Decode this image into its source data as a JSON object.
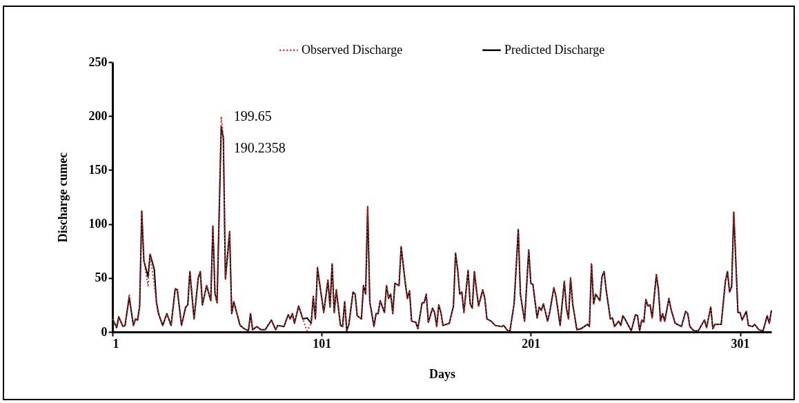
{
  "chart_data": {
    "type": "line",
    "xlabel": "Days",
    "ylabel": "Discharge cumec",
    "xlim": [
      1,
      316
    ],
    "xticks": [
      1,
      101,
      201,
      301
    ],
    "ylim": [
      0,
      250
    ],
    "yticks": [
      0,
      50,
      100,
      150,
      200,
      250
    ],
    "grid": false,
    "legend": "top",
    "marker": "none",
    "x": [
      1,
      3,
      4,
      6,
      7,
      9,
      11,
      12,
      13,
      14,
      15,
      16,
      18,
      19,
      21,
      22,
      23,
      25,
      27,
      29,
      31,
      32,
      34,
      36,
      37,
      38,
      40,
      42,
      43,
      44,
      46,
      48,
      49,
      50,
      51,
      53,
      54,
      55,
      57,
      58,
      59,
      62,
      64,
      66,
      67,
      68,
      70,
      72,
      74,
      77,
      79,
      80,
      83,
      85,
      86,
      87,
      88,
      90,
      92,
      94,
      96,
      97,
      98,
      99,
      102,
      104,
      105,
      106,
      107,
      108,
      110,
      111,
      112,
      113,
      114,
      116,
      117,
      118,
      120,
      121,
      122,
      123,
      124,
      126,
      127,
      128,
      129,
      131,
      132,
      133,
      134,
      135,
      136,
      138,
      139,
      141,
      142,
      143,
      144,
      146,
      147,
      149,
      150,
      151,
      152,
      154,
      155,
      156,
      157,
      158,
      159,
      162,
      164,
      165,
      166,
      167,
      168,
      169,
      171,
      172,
      173,
      174,
      175,
      176,
      178,
      179,
      180,
      182,
      184,
      187,
      188,
      190,
      191,
      193,
      195,
      196,
      198,
      200,
      201,
      202,
      204,
      205,
      206,
      207,
      209,
      210,
      212,
      213,
      215,
      217,
      218,
      219,
      220,
      221,
      223,
      225,
      228,
      229,
      230,
      231,
      232,
      234,
      235,
      236,
      237,
      239,
      240,
      241,
      243,
      244,
      245,
      246,
      249,
      251,
      252,
      253,
      254,
      255,
      256,
      257,
      258,
      259,
      261,
      262,
      263,
      264,
      265,
      267,
      268,
      270,
      273,
      275,
      276,
      277,
      279,
      281,
      284,
      285,
      287,
      288,
      289,
      291,
      292,
      294,
      295,
      296,
      297,
      298,
      300,
      301,
      302,
      304,
      305,
      307,
      308,
      310,
      312,
      314,
      315,
      316
    ],
    "series": [
      {
        "name": "Observed Discharge",
        "color": "#d62728",
        "line_style": "dotted",
        "values": [
          12,
          4,
          14,
          5,
          6,
          35,
          6,
          12,
          11,
          24,
          112,
          66,
          43,
          72,
          43,
          28,
          17,
          6,
          17,
          6,
          40,
          39,
          6,
          23,
          25,
          56,
          12,
          50,
          56,
          25,
          43,
          29,
          98,
          36,
          27,
          199.65,
          180,
          49,
          93,
          17,
          28,
          6,
          3,
          1,
          17,
          2,
          5,
          2,
          2,
          11,
          2,
          6,
          5,
          16,
          12,
          17,
          8,
          24,
          12,
          1,
          8,
          33,
          12,
          60,
          18,
          48,
          23,
          63,
          18,
          39,
          6,
          5,
          28,
          1,
          7,
          37,
          35,
          15,
          12,
          43,
          35,
          116,
          28,
          5,
          17,
          17,
          29,
          18,
          43,
          31,
          35,
          17,
          45,
          43,
          79,
          45,
          31,
          38,
          10,
          9,
          3,
          27,
          27,
          35,
          9,
          22,
          18,
          5,
          25,
          18,
          6,
          8,
          24,
          73,
          58,
          35,
          37,
          18,
          57,
          26,
          22,
          56,
          39,
          24,
          39,
          31,
          12,
          10,
          6,
          5,
          6,
          1,
          1,
          26,
          95,
          35,
          10,
          76,
          45,
          44,
          13,
          23,
          20,
          26,
          10,
          18,
          41,
          33,
          6,
          47,
          22,
          12,
          50,
          26,
          2,
          3,
          7,
          5,
          63,
          26,
          35,
          29,
          51,
          56,
          39,
          12,
          13,
          5,
          10,
          6,
          15,
          12,
          1,
          16,
          15,
          1,
          11,
          9,
          30,
          24,
          25,
          13,
          53,
          39,
          10,
          17,
          10,
          31,
          21,
          8,
          5,
          19,
          17,
          5,
          1,
          1,
          11,
          4,
          23,
          3,
          7,
          7,
          7,
          47,
          56,
          37,
          42,
          111,
          18,
          18,
          11,
          19,
          6,
          5,
          7,
          2,
          1,
          15,
          8,
          20
        ]
      },
      {
        "name": "Predicted Discharge",
        "color": "#000000",
        "line_style": "solid",
        "values": [
          12,
          4,
          14,
          5,
          6,
          32,
          6,
          12,
          11,
          24,
          112,
          66,
          51,
          72,
          58,
          28,
          17,
          6,
          17,
          6,
          40,
          39,
          6,
          23,
          25,
          56,
          12,
          50,
          56,
          25,
          43,
          29,
          98,
          36,
          27,
          190.2358,
          180,
          49,
          93,
          17,
          28,
          6,
          3,
          1,
          17,
          2,
          5,
          2,
          2,
          11,
          2,
          6,
          5,
          16,
          12,
          17,
          8,
          24,
          12,
          13,
          8,
          33,
          12,
          59,
          18,
          48,
          23,
          63,
          18,
          39,
          6,
          5,
          28,
          1,
          7,
          37,
          35,
          15,
          12,
          43,
          35,
          116,
          28,
          5,
          17,
          17,
          29,
          18,
          43,
          31,
          35,
          17,
          45,
          43,
          79,
          45,
          31,
          38,
          10,
          9,
          3,
          27,
          27,
          35,
          9,
          22,
          18,
          5,
          25,
          18,
          6,
          8,
          24,
          73,
          58,
          35,
          37,
          18,
          57,
          26,
          22,
          56,
          39,
          24,
          39,
          31,
          12,
          10,
          6,
          5,
          6,
          1,
          1,
          26,
          95,
          35,
          10,
          76,
          45,
          44,
          13,
          23,
          20,
          26,
          10,
          18,
          41,
          33,
          6,
          47,
          22,
          12,
          50,
          26,
          2,
          3,
          7,
          5,
          63,
          26,
          35,
          29,
          51,
          56,
          39,
          12,
          13,
          5,
          10,
          6,
          15,
          12,
          1,
          16,
          15,
          1,
          11,
          9,
          30,
          24,
          25,
          13,
          53,
          39,
          10,
          17,
          10,
          31,
          21,
          8,
          5,
          19,
          17,
          5,
          1,
          1,
          11,
          4,
          23,
          3,
          7,
          7,
          7,
          47,
          56,
          37,
          42,
          111,
          18,
          18,
          11,
          19,
          6,
          5,
          7,
          2,
          1,
          15,
          8,
          20
        ]
      }
    ],
    "annotations": [
      {
        "text": "199.65",
        "x": 53,
        "y": 199.65
      },
      {
        "text": "190.2358",
        "x": 53,
        "y": 190.2358
      }
    ]
  }
}
